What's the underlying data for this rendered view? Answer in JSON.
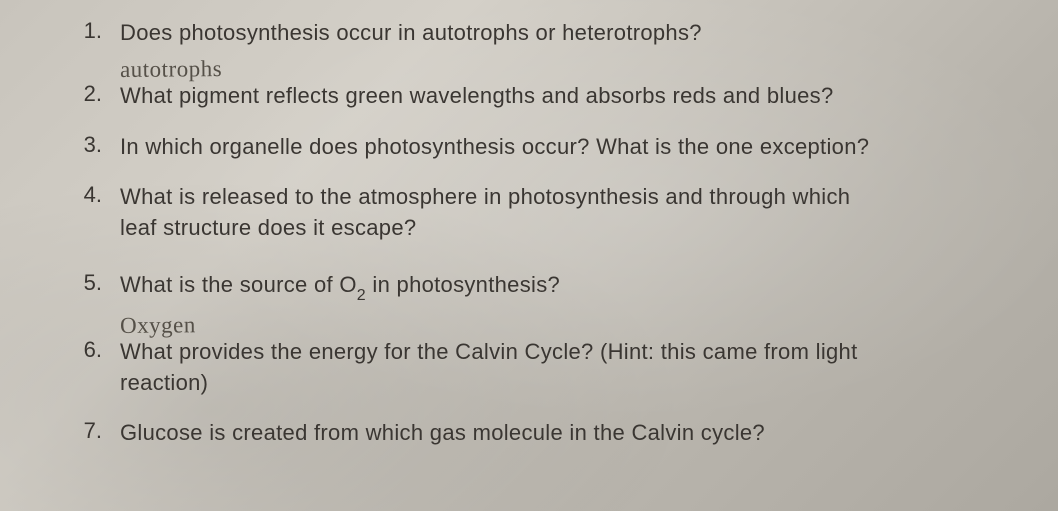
{
  "background_color": "#c8c4bc",
  "text_color": "#3a3632",
  "handwriting_color": "#555048",
  "font_family": "Trebuchet MS",
  "handwriting_font": "Comic Sans MS",
  "font_size_pt": 22,
  "questions": [
    {
      "number": "1.",
      "text": "Does photosynthesis occur in autotrophs or heterotrophs?",
      "answer": "autotrophs",
      "gap": "none"
    },
    {
      "number": "2.",
      "text": "What pigment reflects green wavelengths and absorbs reds and blues?",
      "answer": "",
      "gap": "med"
    },
    {
      "number": "3.",
      "text": "In which organelle does photosynthesis occur? What is the one exception?",
      "answer": "",
      "gap": "med"
    },
    {
      "number": "4.",
      "text_line1": "What is released to the atmosphere in photosynthesis and through which",
      "text_line2": "leaf structure does it escape?",
      "answer": "",
      "gap": "large"
    },
    {
      "number": "5.",
      "text_pre": "What is the source of O",
      "subscript": "2",
      "text_post": " in photosynthesis?",
      "answer": "Oxygen",
      "gap": "none"
    },
    {
      "number": "6.",
      "text_line1": "What provides the energy for the Calvin Cycle? (Hint: this came from light",
      "text_line2": "reaction)",
      "answer": "",
      "gap": "med"
    },
    {
      "number": "7.",
      "text": "Glucose is created from which gas molecule in the Calvin cycle?",
      "answer": "",
      "gap": "none"
    }
  ]
}
